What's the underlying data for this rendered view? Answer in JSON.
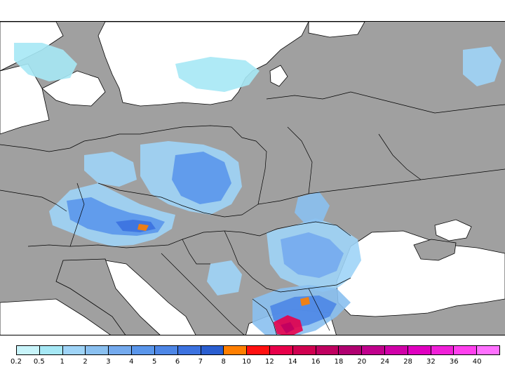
{
  "map": {
    "region": "Central and Eastern Europe",
    "colors": {
      "land": "#a0a0a0",
      "water": "#ffffff",
      "borders": "#000000"
    }
  },
  "legend": {
    "ticks": [
      "0.2",
      "0.5",
      "1",
      "2",
      "3",
      "4",
      "5",
      "6",
      "7",
      "8",
      "10",
      "12",
      "14",
      "16",
      "18",
      "20",
      "24",
      "28",
      "32",
      "36",
      "40"
    ],
    "colors": [
      "#c8f4fa",
      "#a6e8f5",
      "#9fd4f7",
      "#8ac0f0",
      "#74aaee",
      "#5a96eb",
      "#4d86e6",
      "#3c72e0",
      "#2a5ed0",
      "#ff7f00",
      "#ff1010",
      "#e8004a",
      "#d00050",
      "#c00060",
      "#b00070",
      "#c0008c",
      "#d000a8",
      "#e000c0",
      "#f020d8",
      "#ff40ee",
      "#ff70ff"
    ]
  }
}
